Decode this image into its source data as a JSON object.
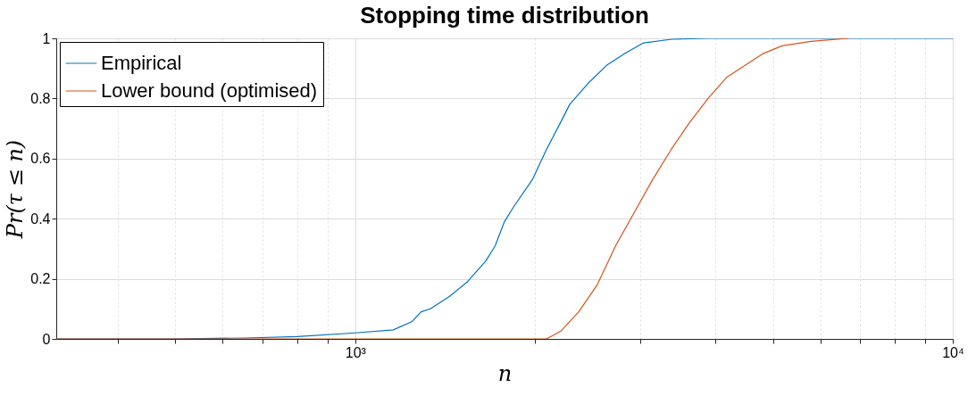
{
  "chart_data": {
    "type": "line",
    "title": "Stopping time distribution",
    "xlabel": "n",
    "ylabel": "Pr(τ ≤ n)",
    "log": "x",
    "grid": true,
    "legend": "top left",
    "marker": "none",
    "line_style": "solid",
    "xlim": [
      316,
      10000
    ],
    "xticks": [
      {
        "value": 400,
        "label": null
      },
      {
        "value": 500,
        "label": null
      },
      {
        "value": 600,
        "label": null
      },
      {
        "value": 700,
        "label": null
      },
      {
        "value": 800,
        "label": null
      },
      {
        "value": 900,
        "label": null
      },
      {
        "value": 1000,
        "label": "10³"
      },
      {
        "value": 2000,
        "label": null
      },
      {
        "value": 3000,
        "label": null
      },
      {
        "value": 4000,
        "label": null
      },
      {
        "value": 5000,
        "label": null
      },
      {
        "value": 6000,
        "label": null
      },
      {
        "value": 7000,
        "label": null
      },
      {
        "value": 8000,
        "label": null
      },
      {
        "value": 9000,
        "label": null
      },
      {
        "value": 10000,
        "label": "10⁴"
      }
    ],
    "ylim": [
      0,
      1
    ],
    "yticks": [
      0,
      {
        "value": 0.2,
        "label": "0.2"
      },
      {
        "value": 0.4,
        "label": "0.4"
      },
      {
        "value": 0.6,
        "label": "0.6"
      },
      {
        "value": 0.8,
        "label": "0.8"
      },
      1
    ],
    "series": [
      {
        "name": "Empirical",
        "color": "#0072bd",
        "x": [
          316,
          500,
          653,
          800,
          1000,
          1158,
          1243,
          1289,
          1336,
          1435,
          1541,
          1655,
          1715,
          1777,
          1842,
          1979,
          2089,
          2206,
          2285,
          2452,
          2634,
          2829,
          3038,
          3386,
          3905,
          10000
        ],
        "values": [
          0,
          0,
          0.003,
          0.008,
          0.02,
          0.03,
          0.057,
          0.09,
          0.1,
          0.14,
          0.19,
          0.26,
          0.31,
          0.39,
          0.44,
          0.53,
          0.63,
          0.72,
          0.78,
          0.85,
          0.91,
          0.95,
          0.985,
          0.997,
          1,
          1
        ]
      },
      {
        "name": "Lower bound (optimised)",
        "color": "#d95319",
        "x": [
          316,
          2089,
          2206,
          2366,
          2541,
          2728,
          2929,
          3146,
          3378,
          3627,
          3895,
          4183,
          4491,
          4823,
          5179,
          5792,
          6693
        ],
        "values": [
          0,
          0,
          0.025,
          0.09,
          0.18,
          0.31,
          0.42,
          0.53,
          0.63,
          0.72,
          0.8,
          0.87,
          0.91,
          0.95,
          0.975,
          0.99,
          1
        ]
      }
    ]
  }
}
